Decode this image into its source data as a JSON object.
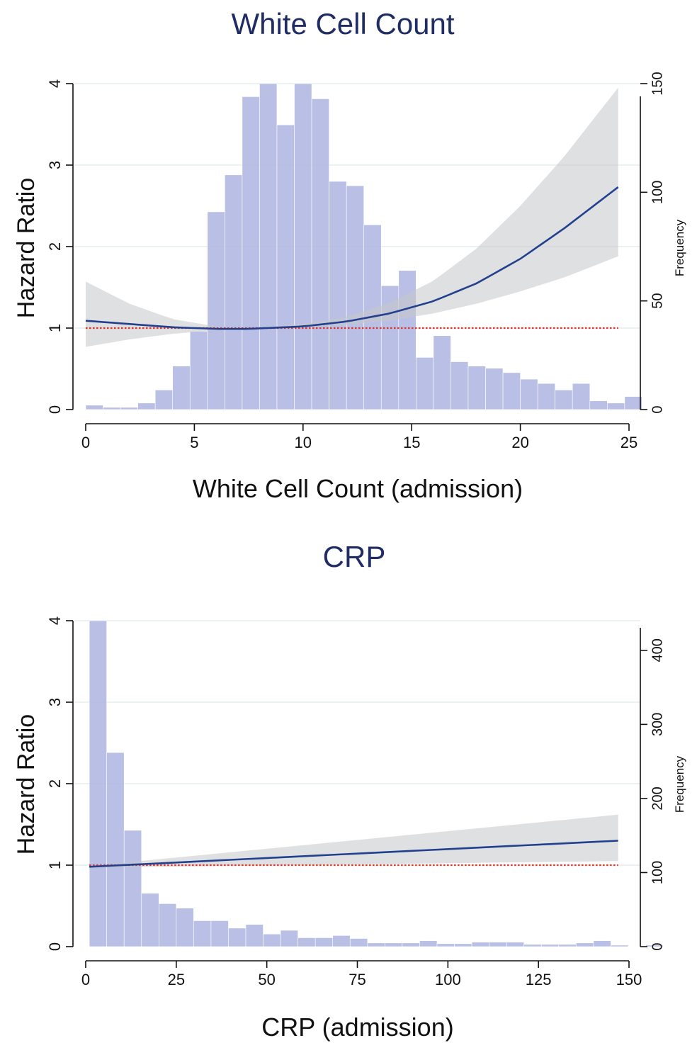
{
  "chart_data": [
    {
      "type": "line",
      "title": "White Cell Count",
      "xlabel": "White Cell Count (admission)",
      "ylabel": "Hazard Ratio",
      "y2label": "Frequency",
      "xlim": [
        0,
        25
      ],
      "ylim": [
        0,
        4
      ],
      "y2lim": [
        0,
        150
      ],
      "xticks": [
        0,
        5,
        10,
        15,
        20,
        25
      ],
      "yticks": [
        0,
        1,
        2,
        3,
        4
      ],
      "y2ticks": [
        0,
        50,
        100,
        150
      ],
      "grid": true,
      "histogram": {
        "bin_start": 0,
        "bin_width": 0.8,
        "frequencies": [
          2,
          1,
          1,
          3,
          9,
          20,
          36,
          91,
          108,
          144,
          150,
          131,
          150,
          143,
          105,
          103,
          85,
          57,
          64,
          24,
          34,
          22,
          20,
          19,
          17,
          14,
          12,
          9,
          12,
          4,
          3,
          6
        ]
      },
      "series": [
        {
          "x": [
            0,
            2,
            4,
            6,
            7.5,
            10,
            12,
            14,
            16,
            18,
            20,
            22,
            24.5
          ],
          "y": [
            1.09,
            1.05,
            1.01,
            0.99,
            0.99,
            1.02,
            1.08,
            1.18,
            1.33,
            1.55,
            1.85,
            2.22,
            2.73
          ],
          "ci_lower": [
            0.77,
            0.86,
            0.93,
            0.97,
            0.98,
            1.0,
            1.04,
            1.09,
            1.18,
            1.3,
            1.45,
            1.62,
            1.88
          ],
          "ci_upper": [
            1.57,
            1.3,
            1.11,
            1.02,
            1.0,
            1.05,
            1.14,
            1.31,
            1.58,
            1.98,
            2.5,
            3.1,
            3.95
          ]
        },
        {
          "x": [
            0,
            24.5
          ],
          "y": [
            1,
            1
          ]
        }
      ]
    },
    {
      "type": "line",
      "title": "CRP",
      "xlabel": "CRP (admission)",
      "ylabel": "Hazard Ratio",
      "y2label": "Frequency",
      "xlim": [
        0,
        150
      ],
      "ylim": [
        0,
        4
      ],
      "y2lim": [
        0,
        440
      ],
      "xticks": [
        0,
        25,
        50,
        75,
        100,
        125,
        150
      ],
      "yticks": [
        0,
        1,
        2,
        3,
        4
      ],
      "y2ticks": [
        0,
        100,
        200,
        300,
        400
      ],
      "grid": true,
      "histogram": {
        "bin_start": 1,
        "bin_width": 4.8,
        "frequencies": [
          440,
          262,
          157,
          72,
          58,
          52,
          35,
          35,
          25,
          30,
          17,
          22,
          12,
          12,
          15,
          11,
          5,
          5,
          5,
          8,
          4,
          4,
          6,
          6,
          6,
          3,
          3,
          3,
          5,
          8,
          2,
          0,
          2
        ]
      },
      "series": [
        {
          "x": [
            1,
            147
          ],
          "y": [
            0.98,
            1.3
          ],
          "ci_lower": [
            0.97,
            1.05
          ],
          "ci_upper": [
            0.99,
            1.62
          ]
        },
        {
          "x": [
            1,
            147
          ],
          "y": [
            1,
            1
          ]
        }
      ]
    }
  ]
}
